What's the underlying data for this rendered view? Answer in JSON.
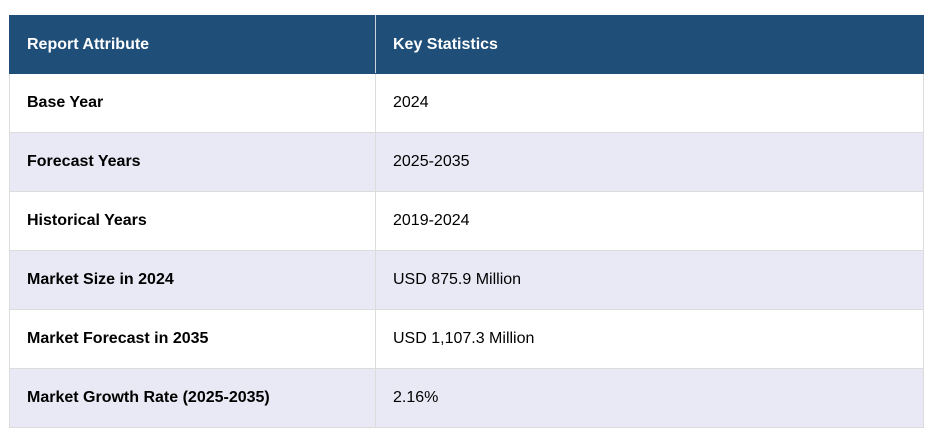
{
  "table": {
    "header": [
      "Report Attribute",
      "Key Statistics"
    ],
    "rows": [
      [
        "Base Year",
        "2024"
      ],
      [
        "Forecast Years",
        "2025-2035"
      ],
      [
        "Historical Years",
        "2019-2024"
      ],
      [
        "Market Size in 2024",
        "USD 875.9 Million"
      ],
      [
        "Market Forecast in 2035",
        "USD 1,107.3 Million"
      ],
      [
        "Market Growth Rate (2025-2035)",
        "2.16%"
      ]
    ]
  }
}
